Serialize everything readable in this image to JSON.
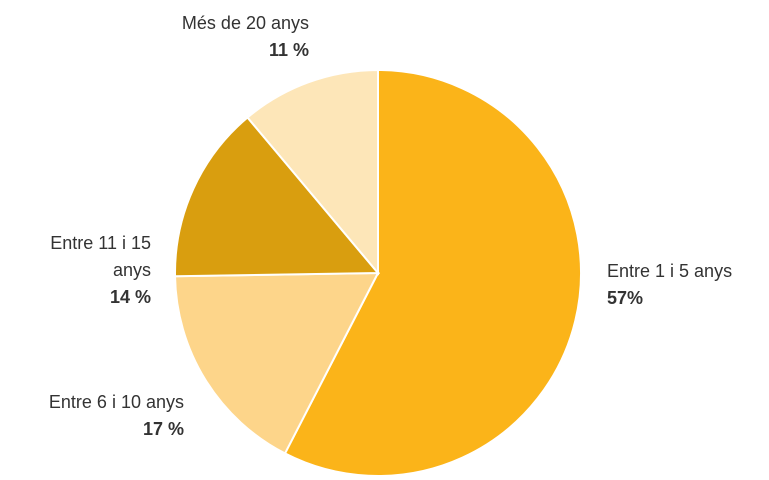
{
  "chart_data": {
    "type": "pie",
    "categories": [
      "Entre 1 i 5 anys",
      "Entre 6 i 10 anys",
      "Entre 11 i 15 anys",
      "Més de 20 anys"
    ],
    "values": [
      57,
      17,
      14,
      11
    ],
    "value_labels": [
      "57%",
      "17 %",
      "14 %",
      "11 %"
    ],
    "colors": [
      "#fbb419",
      "#fdd58a",
      "#d99e0f",
      "#fde6b8"
    ]
  }
}
